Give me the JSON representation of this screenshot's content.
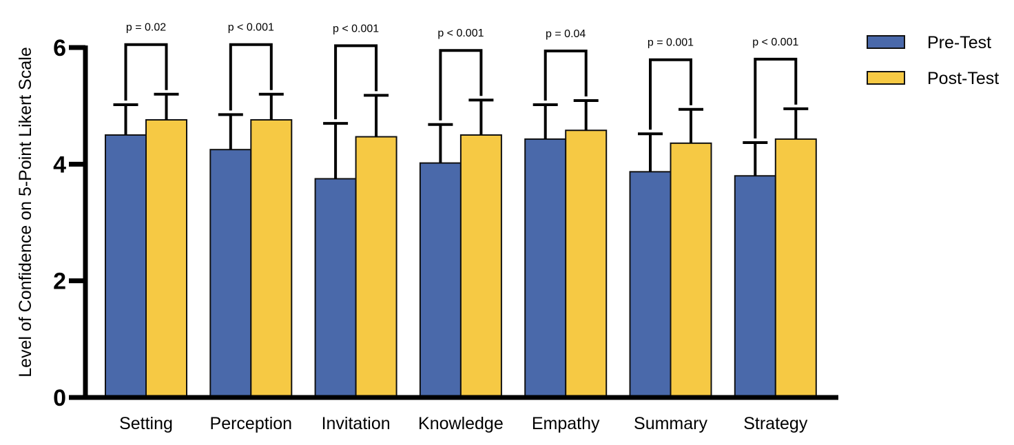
{
  "chart_data": {
    "type": "bar",
    "ylabel": "Level of Confidence on 5-Point Likert Scale",
    "xlabel": "",
    "ylim": [
      0,
      6
    ],
    "yticks": [
      0,
      2,
      4,
      6
    ],
    "categories": [
      "Setting",
      "Perception",
      "Invitation",
      "Knowledge",
      "Empathy",
      "Summary",
      "Strategy"
    ],
    "series": [
      {
        "name": "Pre-Test",
        "color": "#4a69aa",
        "values": [
          4.5,
          4.25,
          3.75,
          4.02,
          4.43,
          3.87,
          3.8
        ],
        "error": [
          0.52,
          0.6,
          0.95,
          0.66,
          0.59,
          0.65,
          0.57
        ]
      },
      {
        "name": "Post-Test",
        "color": "#f6c944",
        "values": [
          4.76,
          4.76,
          4.47,
          4.5,
          4.58,
          4.36,
          4.43
        ],
        "error": [
          0.44,
          0.44,
          0.71,
          0.6,
          0.51,
          0.58,
          0.52
        ]
      }
    ],
    "annotations": [
      "p = 0.02",
      "p < 0.001",
      "p < 0.001",
      "p < 0.001",
      "p = 0.04",
      "p = 0.001",
      "p < 0.001"
    ],
    "legend": "top-right",
    "grid": false
  }
}
